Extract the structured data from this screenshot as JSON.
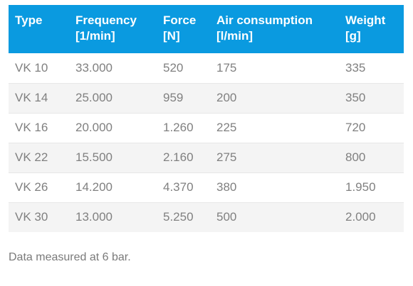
{
  "table": {
    "headers": [
      {
        "line1": "Type",
        "line2": ""
      },
      {
        "line1": "Frequency",
        "line2": "[1/min]"
      },
      {
        "line1": "Force",
        "line2": "[N]"
      },
      {
        "line1": "Air consumption",
        "line2": "[l/min]"
      },
      {
        "line1": "Weight",
        "line2": "[g]"
      }
    ],
    "rows": [
      [
        "VK 10",
        "33.000",
        "520",
        "175",
        "335"
      ],
      [
        "VK 14",
        "25.000",
        "959",
        "200",
        "350"
      ],
      [
        "VK 16",
        "20.000",
        "1.260",
        "225",
        "720"
      ],
      [
        "VK 22",
        "15.500",
        "2.160",
        "275",
        "800"
      ],
      [
        "VK 26",
        "14.200",
        "4.370",
        "380",
        "1.950"
      ],
      [
        "VK 30",
        "13.000",
        "5.250",
        "500",
        "2.000"
      ]
    ]
  },
  "footnote": "Data measured at 6 bar.",
  "colors": {
    "header_bg": "#0a9ae0",
    "header_text": "#ffffff",
    "row_alt_bg": "#f4f4f4",
    "body_text": "#808080"
  }
}
